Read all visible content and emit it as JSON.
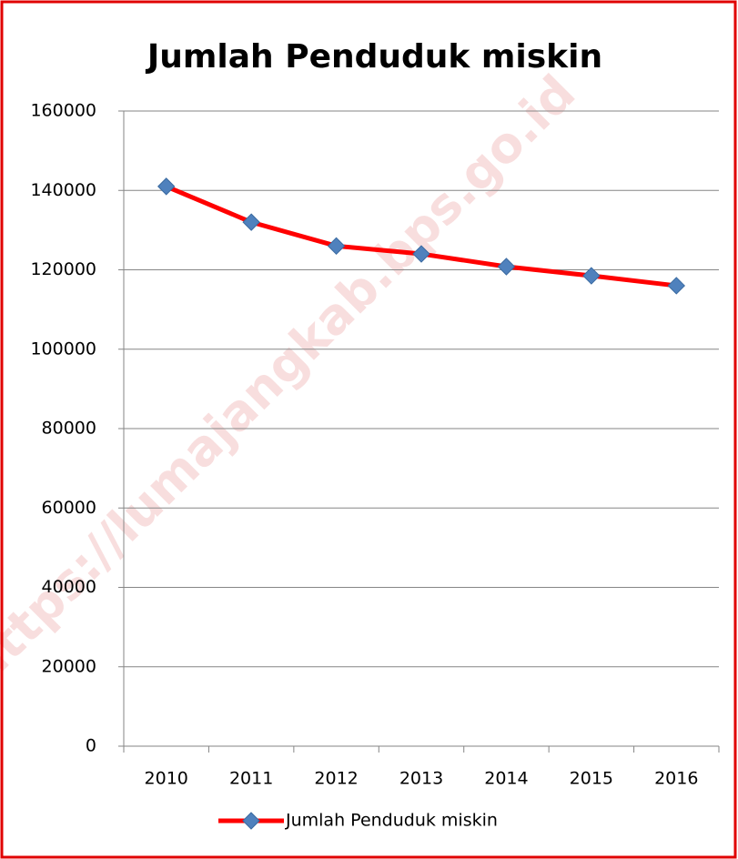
{
  "chart_data": {
    "type": "line",
    "title": "Jumlah Penduduk miskin",
    "categories": [
      "2010",
      "2011",
      "2012",
      "2013",
      "2014",
      "2015",
      "2016"
    ],
    "series": [
      {
        "name": "Jumlah Penduduk miskin",
        "color": "#ff0000",
        "marker_color": "#4f81bd",
        "values": [
          141000,
          132000,
          126000,
          124000,
          120800,
          118500,
          116000
        ]
      }
    ],
    "ylim": [
      0,
      160000
    ],
    "yticks": [
      0,
      20000,
      40000,
      60000,
      80000,
      100000,
      120000,
      140000,
      160000
    ],
    "grid": true,
    "legend": "bottom",
    "watermark": "https://lumajangkab.bps.go.id"
  }
}
